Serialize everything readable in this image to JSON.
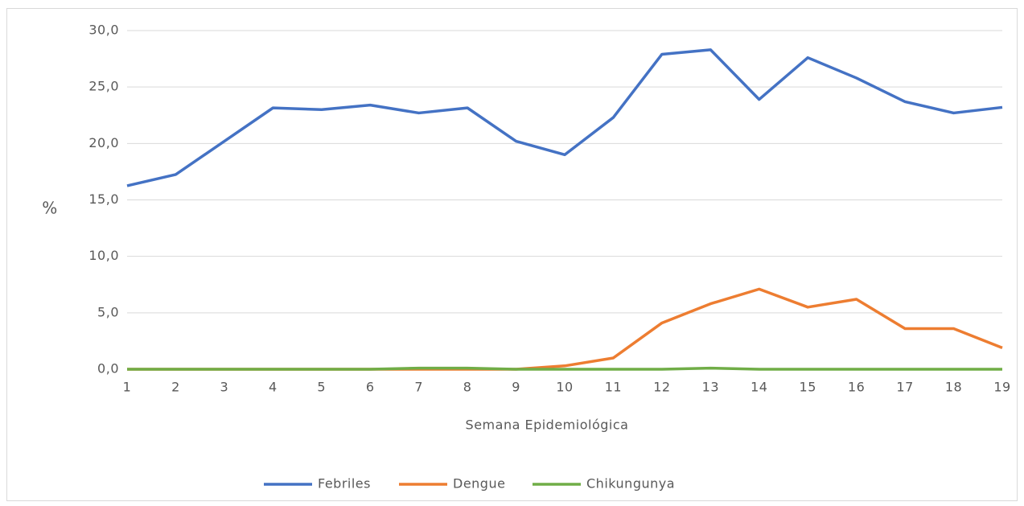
{
  "chart_data": {
    "type": "line",
    "y_label": "%",
    "x_label": "Semana Epidemiológica",
    "categories": [
      "1",
      "2",
      "3",
      "4",
      "5",
      "6",
      "7",
      "8",
      "9",
      "10",
      "11",
      "12",
      "13",
      "14",
      "15",
      "16",
      "17",
      "18",
      "19"
    ],
    "series": [
      {
        "name": "Febriles",
        "color": "#4472c4",
        "values": [
          16.25,
          17.25,
          20.2,
          23.15,
          23.0,
          23.4,
          22.7,
          23.15,
          20.2,
          19.0,
          22.3,
          27.9,
          28.3,
          23.9,
          27.6,
          25.8,
          23.7,
          22.7,
          23.2
        ]
      },
      {
        "name": "Dengue",
        "color": "#ed7d31",
        "values": [
          0,
          0,
          0,
          0,
          0,
          0,
          0,
          0,
          0,
          0.3,
          1.0,
          4.1,
          5.8,
          7.1,
          5.5,
          6.2,
          3.6,
          3.6,
          1.9
        ]
      },
      {
        "name": "Chikungunya",
        "color": "#70ad47",
        "values": [
          0,
          0,
          0,
          0,
          0,
          0,
          0.1,
          0.1,
          0,
          0,
          0,
          0,
          0.1,
          0,
          0,
          0,
          0,
          0,
          0
        ]
      }
    ],
    "ylim": [
      0,
      30
    ],
    "yticks": [
      {
        "value": 0,
        "label": "0,0"
      },
      {
        "value": 5,
        "label": "5,0"
      },
      {
        "value": 10,
        "label": "10,0"
      },
      {
        "value": 15,
        "label": "15,0"
      },
      {
        "value": 20,
        "label": "20,0"
      },
      {
        "value": 25,
        "label": "25,0"
      },
      {
        "value": 30,
        "label": "30,0"
      }
    ],
    "grid": true,
    "legend": "bottom"
  }
}
